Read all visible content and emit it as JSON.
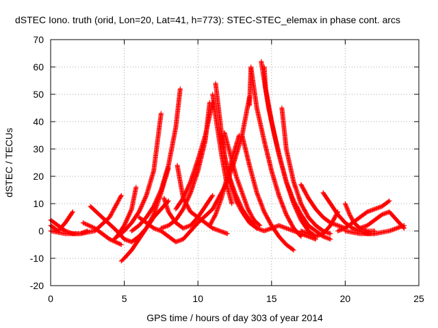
{
  "chart_data": {
    "type": "scatter",
    "title": "dSTEC Iono. truth (orid, Lon=20, Lat=41, h=773): STEC-STEC_elemax in phase cont. arcs",
    "xlabel": "GPS time / hours of day 303 of year 2014",
    "ylabel": "dSTEC  / TECUs",
    "xlim": [
      0,
      25
    ],
    "ylim": [
      -20,
      70
    ],
    "xticks": [
      0,
      5,
      10,
      15,
      20,
      25
    ],
    "yticks": [
      -20,
      -10,
      0,
      10,
      20,
      30,
      40,
      50,
      60,
      70
    ],
    "grid": true,
    "marker": "+",
    "color": "#ff0000",
    "series": [
      {
        "x": [
          0.0,
          0.5,
          1.0,
          1.5
        ],
        "y": [
          2,
          0,
          3,
          7
        ]
      },
      {
        "x": [
          0.0,
          0.5,
          1.0,
          1.5,
          2.0,
          2.5
        ],
        "y": [
          4,
          2,
          0,
          -1,
          -1,
          0
        ]
      },
      {
        "x": [
          0.0,
          1.0,
          2.0,
          3.0,
          4.0,
          4.8
        ],
        "y": [
          0,
          -1,
          -1,
          0,
          5,
          13
        ]
      },
      {
        "x": [
          2.2,
          3.0,
          4.0,
          4.8
        ],
        "y": [
          3,
          1,
          -3,
          -5
        ]
      },
      {
        "x": [
          2.7,
          3.5,
          4.5,
          5.0,
          5.5,
          6.0,
          6.5,
          7.0,
          7.5,
          8.0
        ],
        "y": [
          9,
          5,
          0,
          -3,
          -4,
          -2,
          1,
          5,
          8,
          11
        ]
      },
      {
        "x": [
          4.8,
          5.0,
          5.5,
          6.0,
          6.5,
          7.0,
          7.5,
          8.0
        ],
        "y": [
          -11,
          -10,
          -7,
          -3,
          1,
          6,
          14,
          23
        ]
      },
      {
        "x": [
          4.3,
          5.0,
          5.5,
          6.0,
          6.5,
          7.0,
          7.5
        ],
        "y": [
          -3,
          0,
          3,
          7,
          13,
          22,
          43
        ]
      },
      {
        "x": [
          4.5,
          5.0,
          5.5,
          5.8
        ],
        "y": [
          -2,
          2,
          8,
          16
        ]
      },
      {
        "x": [
          5.5,
          6.0,
          6.5,
          7.0,
          7.5,
          8.0,
          8.5,
          8.8
        ],
        "y": [
          0,
          2,
          5,
          9,
          15,
          24,
          38,
          52
        ]
      },
      {
        "x": [
          6.0,
          6.5,
          7.0,
          7.5,
          8.0,
          8.5,
          9.0,
          9.5,
          10.0
        ],
        "y": [
          5,
          3,
          1,
          0,
          -2,
          -4,
          -3,
          0,
          3
        ]
      },
      {
        "x": [
          7.7,
          8.0,
          8.5,
          9.0,
          9.5,
          10.0,
          10.5,
          11.0
        ],
        "y": [
          12,
          7,
          3,
          1,
          2,
          5,
          9,
          13
        ]
      },
      {
        "x": [
          8.6,
          8.8,
          9.0,
          9.5,
          10.0,
          10.5,
          11.0,
          11.5,
          12.0
        ],
        "y": [
          24,
          18,
          12,
          7,
          5,
          3,
          1,
          0,
          -1
        ]
      },
      {
        "x": [
          8.5,
          9.0,
          9.5,
          10.0,
          10.5,
          11.0
        ],
        "y": [
          8,
          12,
          18,
          26,
          35,
          47
        ]
      },
      {
        "x": [
          7.5,
          8.0,
          8.5,
          9.0,
          9.5,
          10.0,
          10.5,
          10.8
        ],
        "y": [
          1,
          2,
          4,
          8,
          14,
          22,
          33,
          47
        ]
      },
      {
        "x": [
          11.0,
          11.2,
          11.4,
          11.6,
          11.8,
          12.0,
          12.3
        ],
        "y": [
          50,
          42,
          35,
          28,
          22,
          16,
          10
        ]
      },
      {
        "x": [
          11.2,
          11.4,
          11.6,
          11.8,
          12.0,
          12.5,
          13.0,
          13.5,
          14.0
        ],
        "y": [
          54,
          45,
          36,
          28,
          22,
          14,
          8,
          4,
          1
        ]
      },
      {
        "x": [
          11.6,
          11.8,
          12.0,
          12.3,
          12.6,
          13.0,
          13.5,
          14.0,
          14.5,
          15.0
        ],
        "y": [
          35,
          28,
          22,
          16,
          11,
          7,
          3,
          1,
          0,
          1
        ]
      },
      {
        "x": [
          11.8,
          12.2,
          12.6,
          13.0,
          13.4,
          13.8,
          14.2
        ],
        "y": [
          36,
          28,
          20,
          14,
          8,
          4,
          2
        ]
      },
      {
        "x": [
          10.0,
          11.0,
          12.0,
          12.5,
          13.0,
          13.5
        ],
        "y": [
          3,
          8,
          18,
          26,
          35,
          49
        ]
      },
      {
        "x": [
          10.8,
          11.2,
          11.6,
          12.0,
          12.4,
          12.8
        ],
        "y": [
          2,
          6,
          12,
          20,
          28,
          35
        ]
      },
      {
        "x": [
          13.0,
          13.5,
          14.0,
          14.5,
          15.0,
          15.5,
          16.0,
          16.5
        ],
        "y": [
          35,
          24,
          14,
          7,
          2,
          -2,
          -5,
          -7
        ]
      },
      {
        "x": [
          13.5,
          13.6,
          14.0,
          14.5,
          15.0,
          15.5,
          16.0,
          16.5,
          17.0
        ],
        "y": [
          46,
          60,
          45,
          33,
          22,
          13,
          6,
          1,
          -2
        ]
      },
      {
        "x": [
          14.5,
          14.6,
          15.0,
          15.5,
          16.0,
          16.5,
          17.0,
          17.5,
          18.0
        ],
        "y": [
          60,
          52,
          40,
          28,
          18,
          10,
          4,
          0,
          -2
        ]
      },
      {
        "x": [
          14.3,
          14.5,
          14.8,
          15.2,
          15.6,
          16.0,
          16.5,
          17.0,
          17.5,
          18.0,
          18.5,
          19.0
        ],
        "y": [
          62,
          55,
          45,
          35,
          26,
          18,
          11,
          6,
          2,
          0,
          -2,
          -3
        ]
      },
      {
        "x": [
          15.7,
          16.0,
          16.5,
          17.0,
          17.5,
          18.0,
          18.5,
          19.0
        ],
        "y": [
          45,
          30,
          18,
          10,
          5,
          2,
          0,
          -1
        ]
      },
      {
        "x": [
          17.0,
          17.5,
          18.0,
          18.5,
          19.0,
          19.5,
          20.0
        ],
        "y": [
          17,
          12,
          8,
          5,
          3,
          2,
          1
        ]
      },
      {
        "x": [
          18.5,
          19.0,
          19.5,
          20.0,
          20.5,
          21.0,
          21.5,
          22.0
        ],
        "y": [
          14,
          10,
          6,
          3,
          1,
          0,
          -1,
          -1
        ]
      },
      {
        "x": [
          17.0,
          17.5,
          18.0,
          18.5,
          19.0,
          19.5
        ],
        "y": [
          0,
          -1,
          -2,
          -1,
          2,
          7
        ]
      },
      {
        "x": [
          20.0,
          20.3,
          20.6,
          21.0,
          21.5,
          22.0
        ],
        "y": [
          10,
          6,
          3,
          1,
          0,
          0
        ]
      },
      {
        "x": [
          19.5,
          20.0,
          20.5,
          21.0,
          21.5,
          22.0,
          22.5,
          23.0
        ],
        "y": [
          0,
          1,
          3,
          5,
          7,
          8,
          9,
          11
        ]
      },
      {
        "x": [
          21.0,
          21.5,
          22.0,
          22.5,
          23.0,
          23.5,
          24.0
        ],
        "y": [
          1,
          2,
          4,
          6,
          7,
          4,
          1
        ]
      },
      {
        "x": [
          20.0,
          21.0,
          22.0,
          23.0,
          23.5,
          24.0
        ],
        "y": [
          0,
          -1,
          -1,
          0,
          1,
          2
        ]
      },
      {
        "x": [
          15.0,
          15.5,
          16.0,
          16.5,
          17.0,
          17.5,
          18.0
        ],
        "y": [
          1,
          2,
          1,
          0,
          -1,
          -2,
          -3
        ]
      }
    ]
  }
}
